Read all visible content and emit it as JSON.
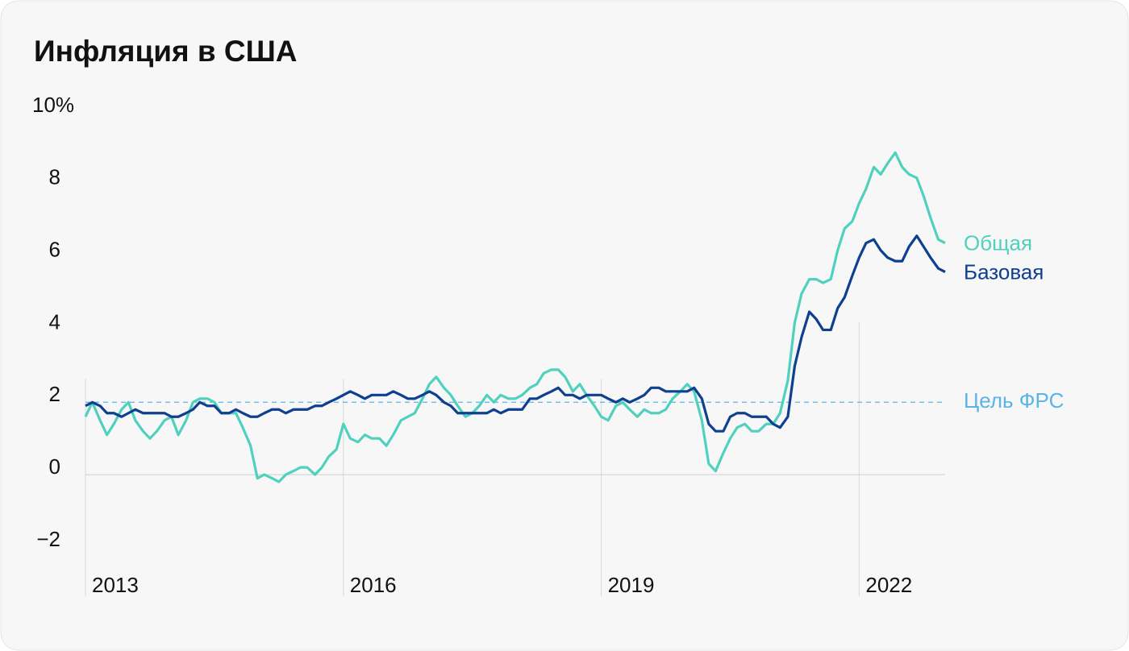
{
  "chart_data": {
    "type": "line",
    "title": "Инфляция в США",
    "x": [
      2013,
      2013.08,
      2013.17,
      2013.25,
      2013.33,
      2013.42,
      2013.5,
      2013.58,
      2013.67,
      2013.75,
      2013.83,
      2013.92,
      2014,
      2014.08,
      2014.17,
      2014.25,
      2014.33,
      2014.42,
      2014.5,
      2014.58,
      2014.67,
      2014.75,
      2014.83,
      2014.92,
      2015,
      2015.08,
      2015.17,
      2015.25,
      2015.33,
      2015.42,
      2015.5,
      2015.58,
      2015.67,
      2015.75,
      2015.83,
      2015.92,
      2016,
      2016.08,
      2016.17,
      2016.25,
      2016.33,
      2016.42,
      2016.5,
      2016.58,
      2016.67,
      2016.75,
      2016.83,
      2016.92,
      2017,
      2017.08,
      2017.17,
      2017.25,
      2017.33,
      2017.42,
      2017.5,
      2017.58,
      2017.67,
      2017.75,
      2017.83,
      2017.92,
      2018,
      2018.08,
      2018.17,
      2018.25,
      2018.33,
      2018.42,
      2018.5,
      2018.58,
      2018.67,
      2018.75,
      2018.83,
      2018.92,
      2019,
      2019.08,
      2019.17,
      2019.25,
      2019.33,
      2019.42,
      2019.5,
      2019.58,
      2019.67,
      2019.75,
      2019.83,
      2019.92,
      2020,
      2020.08,
      2020.17,
      2020.25,
      2020.33,
      2020.42,
      2020.5,
      2020.58,
      2020.67,
      2020.75,
      2020.83,
      2020.92,
      2021,
      2021.08,
      2021.17,
      2021.25,
      2021.33,
      2021.42,
      2021.5,
      2021.58,
      2021.67,
      2021.75,
      2021.83,
      2021.92,
      2022,
      2022.08,
      2022.17,
      2022.25,
      2022.33,
      2022.42,
      2022.5,
      2022.58,
      2022.67,
      2022.75,
      2022.83,
      2022.92,
      2023
    ],
    "series": [
      {
        "name": "Общая",
        "color": "#4fd1bd",
        "values": [
          1.6,
          2.0,
          1.5,
          1.1,
          1.4,
          1.8,
          2.0,
          1.5,
          1.2,
          1.0,
          1.2,
          1.5,
          1.6,
          1.1,
          1.5,
          2.0,
          2.1,
          2.1,
          2.0,
          1.7,
          1.7,
          1.7,
          1.3,
          0.8,
          -0.1,
          0.0,
          -0.1,
          -0.2,
          0.0,
          0.1,
          0.2,
          0.2,
          0.0,
          0.2,
          0.5,
          0.7,
          1.4,
          1.0,
          0.9,
          1.1,
          1.0,
          1.0,
          0.8,
          1.1,
          1.5,
          1.6,
          1.7,
          2.1,
          2.5,
          2.7,
          2.4,
          2.2,
          1.9,
          1.6,
          1.7,
          1.9,
          2.2,
          2.0,
          2.2,
          2.1,
          2.1,
          2.2,
          2.4,
          2.5,
          2.8,
          2.9,
          2.9,
          2.7,
          2.3,
          2.5,
          2.2,
          1.9,
          1.6,
          1.5,
          1.9,
          2.0,
          1.8,
          1.6,
          1.8,
          1.7,
          1.7,
          1.8,
          2.1,
          2.3,
          2.5,
          2.3,
          1.5,
          0.3,
          0.1,
          0.6,
          1.0,
          1.3,
          1.4,
          1.2,
          1.2,
          1.4,
          1.4,
          1.7,
          2.6,
          4.2,
          5.0,
          5.4,
          5.4,
          5.3,
          5.4,
          6.2,
          6.8,
          7.0,
          7.5,
          7.9,
          8.5,
          8.3,
          8.6,
          8.9,
          8.5,
          8.3,
          8.2,
          7.7,
          7.1,
          6.5,
          6.4
        ]
      },
      {
        "name": "Базовая",
        "color": "#0f3f8f",
        "values": [
          1.9,
          2.0,
          1.9,
          1.7,
          1.7,
          1.6,
          1.7,
          1.8,
          1.7,
          1.7,
          1.7,
          1.7,
          1.6,
          1.6,
          1.7,
          1.8,
          2.0,
          1.9,
          1.9,
          1.7,
          1.7,
          1.8,
          1.7,
          1.6,
          1.6,
          1.7,
          1.8,
          1.8,
          1.7,
          1.8,
          1.8,
          1.8,
          1.9,
          1.9,
          2.0,
          2.1,
          2.2,
          2.3,
          2.2,
          2.1,
          2.2,
          2.2,
          2.2,
          2.3,
          2.2,
          2.1,
          2.1,
          2.2,
          2.3,
          2.2,
          2.0,
          1.9,
          1.7,
          1.7,
          1.7,
          1.7,
          1.7,
          1.8,
          1.7,
          1.8,
          1.8,
          1.8,
          2.1,
          2.1,
          2.2,
          2.3,
          2.4,
          2.2,
          2.2,
          2.1,
          2.2,
          2.2,
          2.2,
          2.1,
          2.0,
          2.1,
          2.0,
          2.1,
          2.2,
          2.4,
          2.4,
          2.3,
          2.3,
          2.3,
          2.3,
          2.4,
          2.1,
          1.4,
          1.2,
          1.2,
          1.6,
          1.7,
          1.7,
          1.6,
          1.6,
          1.6,
          1.4,
          1.3,
          1.6,
          3.0,
          3.8,
          4.5,
          4.3,
          4.0,
          4.0,
          4.6,
          4.9,
          5.5,
          6.0,
          6.4,
          6.5,
          6.2,
          6.0,
          5.9,
          5.9,
          6.3,
          6.6,
          6.3,
          6.0,
          5.7,
          5.6
        ]
      }
    ],
    "target": {
      "label": "Цель ФРС",
      "value": 2,
      "color": "#5ab4e8"
    },
    "xlim": [
      2013,
      2023
    ],
    "xticks": [
      2013,
      2016,
      2019,
      2022
    ],
    "ylim": [
      -3.36,
      10
    ],
    "yticks": [
      {
        "value": 10,
        "label": "10%"
      },
      8,
      6,
      4,
      2,
      0,
      {
        "value": -2,
        "label": "−2"
      }
    ]
  }
}
